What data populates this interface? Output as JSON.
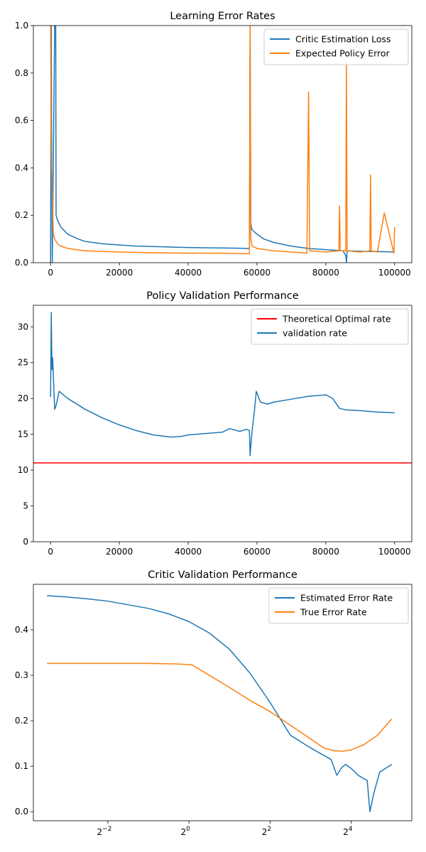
{
  "chart_data": [
    {
      "type": "line",
      "title": "Learning Error Rates",
      "xlim": [
        -5000,
        105000
      ],
      "ylim": [
        0.0,
        1.0
      ],
      "xticks": [
        0,
        20000,
        40000,
        60000,
        80000,
        100000
      ],
      "xtick_labels": [
        "0",
        "20000",
        "40000",
        "60000",
        "80000",
        "100000"
      ],
      "yticks": [
        0.0,
        0.2,
        0.4,
        0.6,
        0.8,
        1.0
      ],
      "ytick_labels": [
        "0.0",
        "0.2",
        "0.4",
        "0.6",
        "0.8",
        "1.0"
      ],
      "legend_position": "upper right",
      "series": [
        {
          "name": "Critic Estimation Loss",
          "color": "#1f77b4",
          "x": [
            0,
            200,
            300,
            500,
            1200,
            1500,
            1600,
            2000,
            3000,
            5000,
            8000,
            10000,
            15000,
            20000,
            25000,
            30000,
            35000,
            40000,
            45000,
            50000,
            55000,
            57800,
            58000,
            58200,
            58500,
            60000,
            62000,
            65000,
            70000,
            75000,
            80000,
            85000,
            85800,
            86000,
            86200,
            90000,
            95000,
            100000
          ],
          "y": [
            0.0,
            1.0,
            0.55,
            0.0,
            1.0,
            1.0,
            0.2,
            0.18,
            0.15,
            0.12,
            0.1,
            0.09,
            0.08,
            0.075,
            0.07,
            0.068,
            0.066,
            0.064,
            0.063,
            0.062,
            0.061,
            0.06,
            1.0,
            0.17,
            0.14,
            0.12,
            0.1,
            0.085,
            0.07,
            0.06,
            0.055,
            0.05,
            0.03,
            0.0,
            0.05,
            0.048,
            0.047,
            0.045
          ]
        },
        {
          "name": "Expected Policy Error",
          "color": "#ff7f0e",
          "x": [
            0,
            150,
            300,
            500,
            800,
            1200,
            2000,
            3000,
            5000,
            10000,
            20000,
            30000,
            40000,
            50000,
            57800,
            58000,
            58200,
            58600,
            60000,
            65000,
            70000,
            74500,
            75000,
            75300,
            80000,
            83800,
            84000,
            84200,
            85800,
            86000,
            86200,
            90000,
            92800,
            93000,
            93200,
            95000,
            97000,
            99800,
            100000
          ],
          "y": [
            1.0,
            0.6,
            0.42,
            0.3,
            0.12,
            0.1,
            0.08,
            0.07,
            0.06,
            0.05,
            0.045,
            0.042,
            0.04,
            0.04,
            0.038,
            1.0,
            0.1,
            0.07,
            0.06,
            0.05,
            0.045,
            0.04,
            0.72,
            0.05,
            0.045,
            0.05,
            0.24,
            0.05,
            0.05,
            0.85,
            0.05,
            0.045,
            0.05,
            0.37,
            0.05,
            0.045,
            0.21,
            0.04,
            0.15
          ]
        }
      ]
    },
    {
      "type": "line",
      "title": "Policy Validation Performance",
      "xlim": [
        -5000,
        105000
      ],
      "ylim": [
        0,
        33
      ],
      "xticks": [
        0,
        20000,
        40000,
        60000,
        80000,
        100000
      ],
      "xtick_labels": [
        "0",
        "20000",
        "40000",
        "60000",
        "80000",
        "100000"
      ],
      "yticks": [
        0,
        5,
        10,
        15,
        20,
        25,
        30
      ],
      "ytick_labels": [
        "0",
        "5",
        "10",
        "15",
        "20",
        "25",
        "30"
      ],
      "legend_position": "upper right",
      "series": [
        {
          "name": "Theoretical Optimal rate",
          "color": "#ff0000",
          "x": [
            -5000,
            105000
          ],
          "y": [
            11,
            11
          ]
        },
        {
          "name": "validation rate",
          "color": "#1f77b4",
          "x": [
            0,
            200,
            400,
            600,
            900,
            1200,
            1600,
            2500,
            5000,
            10000,
            15000,
            20000,
            25000,
            30000,
            35000,
            38000,
            40000,
            45000,
            50000,
            52000,
            55000,
            57000,
            57800,
            58000,
            58300,
            58700,
            59200,
            59800,
            60200,
            61000,
            63000,
            65000,
            70000,
            75000,
            80000,
            82000,
            84000,
            86000,
            90000,
            95000,
            100000
          ],
          "y": [
            20.2,
            32.0,
            24.0,
            25.7,
            22.0,
            18.5,
            19.0,
            21.0,
            20.0,
            18.5,
            17.3,
            16.3,
            15.5,
            14.9,
            14.6,
            14.7,
            14.9,
            15.1,
            15.3,
            15.8,
            15.4,
            15.7,
            15.5,
            12.0,
            14.0,
            16.0,
            18.0,
            21.0,
            20.5,
            19.5,
            19.2,
            19.5,
            19.9,
            20.3,
            20.5,
            20.0,
            18.6,
            18.4,
            18.3,
            18.1,
            18.0
          ]
        }
      ]
    },
    {
      "type": "line",
      "title": "Critic Validation Performance",
      "xscale": "log2",
      "xlim": [
        0.07,
        45.0
      ],
      "ylim": [
        -0.02,
        0.5
      ],
      "xticks": [
        0.25,
        1,
        4,
        16
      ],
      "xtick_labels": [
        {
          "base": "2",
          "exp": "−2"
        },
        {
          "base": "2",
          "exp": "0"
        },
        {
          "base": "2",
          "exp": "2"
        },
        {
          "base": "2",
          "exp": "4"
        }
      ],
      "yticks": [
        0.0,
        0.1,
        0.2,
        0.3,
        0.4
      ],
      "ytick_labels": [
        "0.0",
        "0.1",
        "0.2",
        "0.3",
        "0.4"
      ],
      "legend_position": "upper right",
      "series": [
        {
          "name": "Estimated Error Rate",
          "color": "#1f77b4",
          "x": [
            0.0884,
            0.125,
            0.177,
            0.25,
            0.354,
            0.5,
            0.707,
            1.0,
            1.414,
            2.0,
            2.828,
            4.0,
            5.657,
            8.0,
            11.31,
            12.5,
            13.5,
            14.5,
            16.0,
            18.0,
            20.0,
            21.0,
            22.0,
            23.5,
            26.0,
            32.0
          ],
          "y": [
            0.475,
            0.472,
            0.468,
            0.463,
            0.455,
            0.447,
            0.435,
            0.418,
            0.393,
            0.357,
            0.305,
            0.24,
            0.168,
            0.14,
            0.115,
            0.08,
            0.096,
            0.104,
            0.095,
            0.08,
            0.072,
            0.069,
            0.0,
            0.04,
            0.087,
            0.104
          ]
        },
        {
          "name": "True Error Rate",
          "color": "#ff7f0e",
          "x": [
            0.0884,
            0.25,
            0.5,
            0.8,
            1.05,
            1.414,
            2.0,
            2.828,
            4.0,
            5.657,
            8.0,
            10.0,
            12.0,
            14.0,
            16.0,
            20.0,
            25.0,
            32.0
          ],
          "y": [
            0.326,
            0.326,
            0.326,
            0.325,
            0.323,
            0.3,
            0.273,
            0.245,
            0.22,
            0.19,
            0.16,
            0.14,
            0.134,
            0.133,
            0.136,
            0.148,
            0.168,
            0.204
          ]
        }
      ]
    }
  ]
}
